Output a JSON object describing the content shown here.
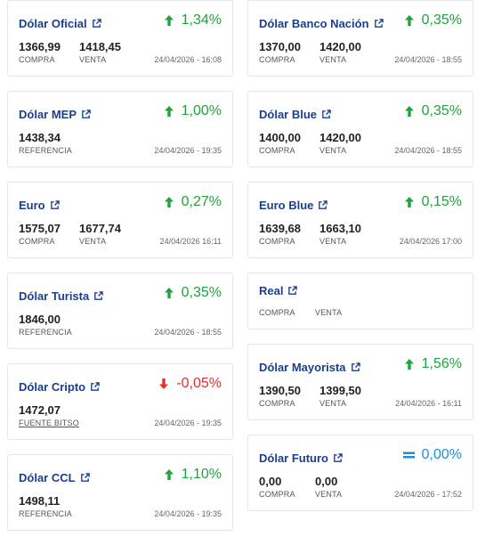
{
  "colors": {
    "title": "#1c3f8c",
    "up": "#1fa33a",
    "down": "#e03030",
    "equal": "#1a8fd8"
  },
  "cards": [
    {
      "title": "Dólar Oficial",
      "change": "1,34%",
      "direction": "up",
      "buy": "1366,99",
      "sell": "1418,45",
      "buy_label": "COMPRA",
      "sell_label": "VENTA",
      "timestamp": "24/04/2026 - 16:08"
    },
    {
      "title": "Dólar Banco Nación",
      "change": "0,35%",
      "direction": "up",
      "buy": "1370,00",
      "sell": "1420,00",
      "buy_label": "COMPRA",
      "sell_label": "VENTA",
      "timestamp": "24/04/2026 - 18:55"
    },
    {
      "title": "Dólar MEP",
      "change": "1,00%",
      "direction": "up",
      "value": "1438,34",
      "value_label": "REFERENCIA",
      "timestamp": "24/04/2026 - 19:35"
    },
    {
      "title": "Dólar Blue",
      "change": "0,35%",
      "direction": "up",
      "buy": "1400,00",
      "sell": "1420,00",
      "buy_label": "COMPRA",
      "sell_label": "VENTA",
      "timestamp": "24/04/2026 - 18:55"
    },
    {
      "title": "Euro",
      "change": "0,27%",
      "direction": "up",
      "buy": "1575,07",
      "sell": "1677,74",
      "buy_label": "COMPRA",
      "sell_label": "VENTA",
      "timestamp": "24/04/2026 16:11"
    },
    {
      "title": "Euro Blue",
      "change": "0,15%",
      "direction": "up",
      "buy": "1639,68",
      "sell": "1663,10",
      "buy_label": "COMPRA",
      "sell_label": "VENTA",
      "timestamp": "24/04/2026 17:00"
    },
    {
      "title": "Dólar Turista",
      "change": "0,35%",
      "direction": "up",
      "value": "1846,00",
      "value_label": "REFERENCIA",
      "timestamp": "24/04/2026 - 18:55"
    },
    {
      "title": "Real",
      "buy_label": "COMPRA",
      "sell_label": "VENTA"
    },
    {
      "title": "Dólar Cripto",
      "change": "-0,05%",
      "direction": "down",
      "value": "1472,07",
      "value_label": "FUENTE BITSO",
      "timestamp": "24/04/2026 - 19:35"
    },
    {
      "title": "Dólar Mayorista",
      "change": "1,56%",
      "direction": "up",
      "buy": "1390,50",
      "sell": "1399,50",
      "buy_label": "COMPRA",
      "sell_label": "VENTA",
      "timestamp": "24/04/2026 - 16:11"
    },
    {
      "title": "Dólar CCL",
      "change": "1,10%",
      "direction": "up",
      "value": "1498,11",
      "value_label": "REFERENCIA",
      "timestamp": "24/04/2026 - 19:35"
    },
    {
      "title": "Dólar Futuro",
      "change": "0,00%",
      "direction": "equal",
      "buy": "0,00",
      "sell": "0,00",
      "buy_label": "COMPRA",
      "sell_label": "VENTA",
      "timestamp": "24/04/2026 - 17:52"
    }
  ]
}
